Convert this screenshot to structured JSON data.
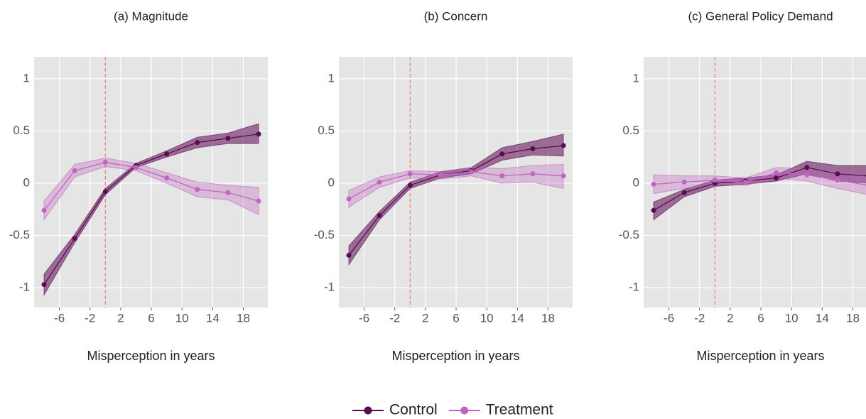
{
  "chart_data": [
    {
      "type": "line",
      "title": "(a) Magnitude",
      "xlabel": "Misperception in years",
      "x": [
        -8,
        -4,
        0,
        4,
        8,
        12,
        16,
        20
      ],
      "xlim": [
        -9.3,
        21.2
      ],
      "xticks": [
        -6,
        -2,
        2,
        6,
        10,
        14,
        18
      ],
      "ylim": [
        -1.19,
        1.21
      ],
      "yticks": [
        -1,
        -0.5,
        0,
        0.5,
        1
      ],
      "grid": true,
      "vline": 0,
      "vline_color": "#f08070",
      "series": [
        {
          "name": "Control",
          "color": "#5c0a52",
          "values": [
            -0.97,
            -0.53,
            -0.08,
            0.17,
            0.28,
            0.39,
            0.43,
            0.47
          ],
          "lower": [
            -1.07,
            -0.57,
            -0.11,
            0.15,
            0.25,
            0.34,
            0.38,
            0.38
          ],
          "upper": [
            -0.87,
            -0.49,
            -0.05,
            0.19,
            0.31,
            0.44,
            0.48,
            0.57
          ]
        },
        {
          "name": "Treatment",
          "color": "#c066c0",
          "values": [
            -0.26,
            0.12,
            0.2,
            0.15,
            0.05,
            -0.06,
            -0.09,
            -0.17
          ],
          "lower": [
            -0.35,
            0.06,
            0.16,
            0.12,
            0.0,
            -0.13,
            -0.16,
            -0.3
          ],
          "upper": [
            -0.17,
            0.18,
            0.24,
            0.19,
            0.1,
            0.01,
            -0.02,
            -0.04
          ]
        }
      ]
    },
    {
      "type": "line",
      "title": "(b) Concern",
      "xlabel": "Misperception in years",
      "x": [
        -8,
        -4,
        0,
        4,
        8,
        12,
        16,
        20
      ],
      "xlim": [
        -9.3,
        21.2
      ],
      "xticks": [
        -6,
        -2,
        2,
        6,
        10,
        14,
        18
      ],
      "ylim": [
        -1.19,
        1.21
      ],
      "yticks": [
        -1,
        -0.5,
        0,
        0.5,
        1
      ],
      "grid": true,
      "vline": 0,
      "vline_color": "#f08070",
      "series": [
        {
          "name": "Control",
          "color": "#5c0a52",
          "values": [
            -0.69,
            -0.31,
            -0.02,
            0.08,
            0.12,
            0.28,
            0.33,
            0.36
          ],
          "lower": [
            -0.78,
            -0.35,
            -0.05,
            0.05,
            0.09,
            0.22,
            0.27,
            0.26
          ],
          "upper": [
            -0.6,
            -0.27,
            0.01,
            0.11,
            0.15,
            0.34,
            0.4,
            0.47
          ]
        },
        {
          "name": "Treatment",
          "color": "#c066c0",
          "values": [
            -0.15,
            0.01,
            0.09,
            0.08,
            0.11,
            0.07,
            0.09,
            0.07
          ],
          "lower": [
            -0.23,
            -0.04,
            0.05,
            0.04,
            0.07,
            0.0,
            0.01,
            -0.05
          ],
          "upper": [
            -0.07,
            0.06,
            0.12,
            0.11,
            0.15,
            0.14,
            0.17,
            0.18
          ]
        }
      ]
    },
    {
      "type": "line",
      "title": "(c) General Policy Demand",
      "xlabel": "Misperception in years",
      "x": [
        -8,
        -4,
        0,
        4,
        8,
        12,
        16,
        20
      ],
      "xlim": [
        -9.3,
        21.2
      ],
      "xticks": [
        -6,
        -2,
        2,
        6,
        10,
        14,
        18
      ],
      "ylim": [
        -1.19,
        1.21
      ],
      "yticks": [
        -1,
        -0.5,
        0,
        0.5,
        1
      ],
      "grid": true,
      "vline": 0,
      "vline_color": "#f08070",
      "series": [
        {
          "name": "Control",
          "color": "#5c0a52",
          "values": [
            -0.26,
            -0.09,
            0.0,
            0.02,
            0.05,
            0.15,
            0.09,
            0.07
          ],
          "lower": [
            -0.35,
            -0.13,
            -0.03,
            -0.01,
            0.02,
            0.09,
            0.02,
            0.0
          ],
          "upper": [
            -0.18,
            -0.06,
            0.03,
            0.05,
            0.08,
            0.21,
            0.17,
            0.17
          ]
        },
        {
          "name": "Treatment",
          "color": "#c066c0",
          "values": [
            -0.01,
            0.01,
            0.03,
            0.01,
            0.1,
            0.08,
            0.03,
            -0.02
          ],
          "lower": [
            -0.1,
            -0.05,
            0.0,
            -0.02,
            0.05,
            0.02,
            -0.05,
            -0.11
          ],
          "upper": [
            0.08,
            0.07,
            0.07,
            0.05,
            0.15,
            0.14,
            0.11,
            0.07
          ]
        }
      ]
    }
  ]
}
